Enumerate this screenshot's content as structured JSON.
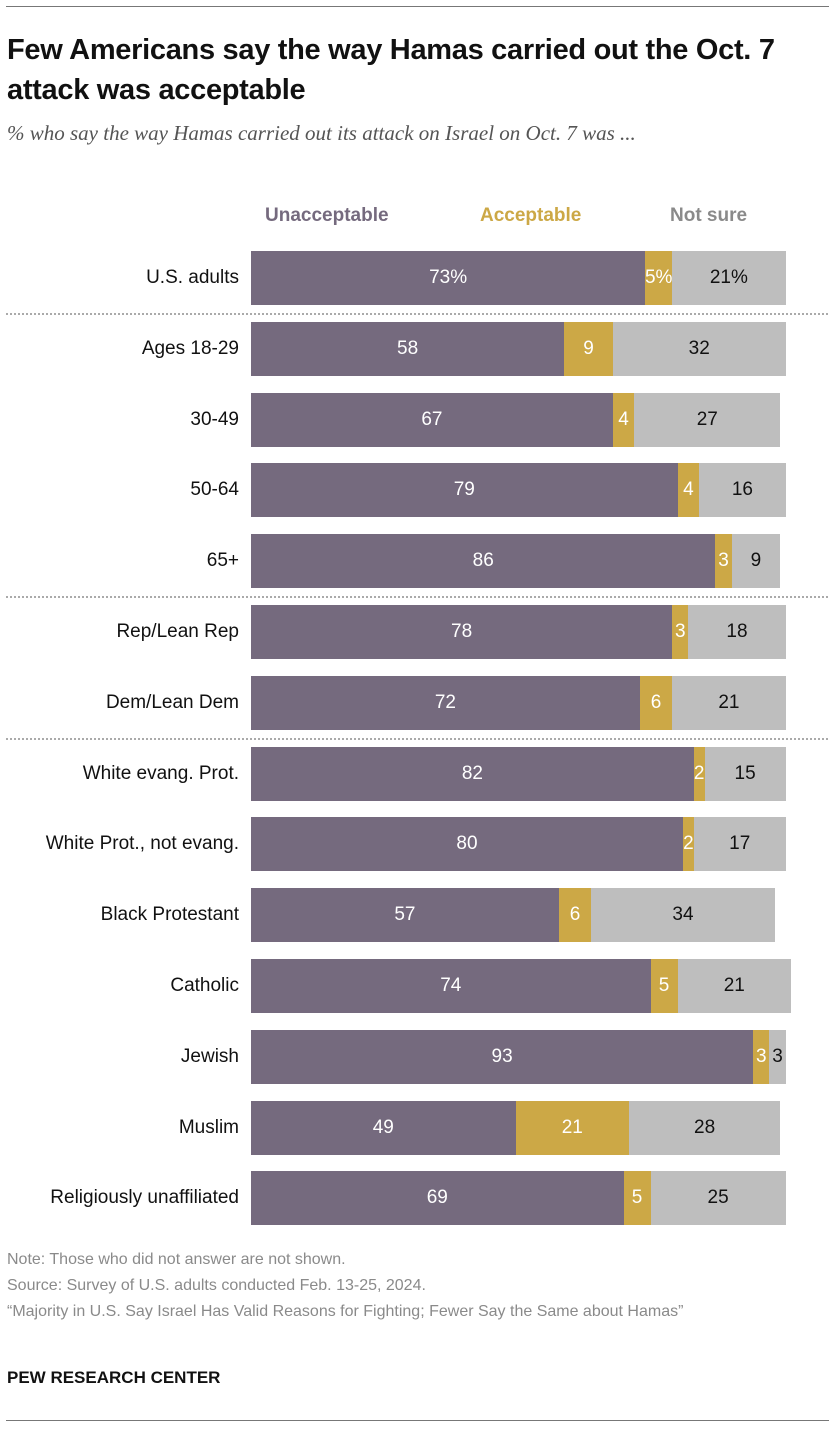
{
  "title": "Few Americans say the way Hamas carried out the Oct. 7 attack was acceptable",
  "subtitle": "% who say the way Hamas carried out its attack on Israel on Oct. 7 was ...",
  "chart_data": {
    "type": "bar",
    "orientation": "horizontal",
    "stacked": true,
    "title": "Few Americans say the way Hamas carried out the Oct. 7 attack was acceptable",
    "subtitle": "% who say the way Hamas carried out its attack on Israel on Oct. 7 was ...",
    "legend_placement": "top",
    "grid": false,
    "xlim": [
      0,
      100
    ],
    "categories": [
      "U.S. adults",
      "Ages 18-29",
      "30-49",
      "50-64",
      "65+",
      "Rep/Lean Rep",
      "Dem/Lean Dem",
      "White evang. Prot.",
      "White Prot., not evang.",
      "Black Protestant",
      "Catholic",
      "Jewish",
      "Muslim",
      "Religiously unaffiliated"
    ],
    "group_breaks_after": [
      0,
      4,
      6
    ],
    "series": [
      {
        "name": "Unacceptable",
        "color": "#756a7e",
        "values": [
          73,
          58,
          67,
          79,
          86,
          78,
          72,
          82,
          80,
          57,
          74,
          93,
          49,
          69
        ]
      },
      {
        "name": "Acceptable",
        "color": "#cca846",
        "values": [
          5,
          9,
          4,
          4,
          3,
          3,
          6,
          2,
          2,
          6,
          5,
          3,
          21,
          5
        ]
      },
      {
        "name": "Not sure",
        "color": "#bebebe",
        "values": [
          21,
          32,
          27,
          16,
          9,
          18,
          21,
          15,
          17,
          34,
          21,
          3,
          28,
          25
        ]
      }
    ],
    "first_row_percent_sign": true
  },
  "notes": {
    "note": "Note: Those who did not answer are not shown.",
    "source": "Source: Survey of U.S. adults conducted Feb. 13-25, 2024.",
    "report": "“Majority in U.S. Say Israel Has Valid Reasons for Fighting; Fewer Say the Same about Hamas”"
  },
  "brand": "PEW RESEARCH CENTER"
}
